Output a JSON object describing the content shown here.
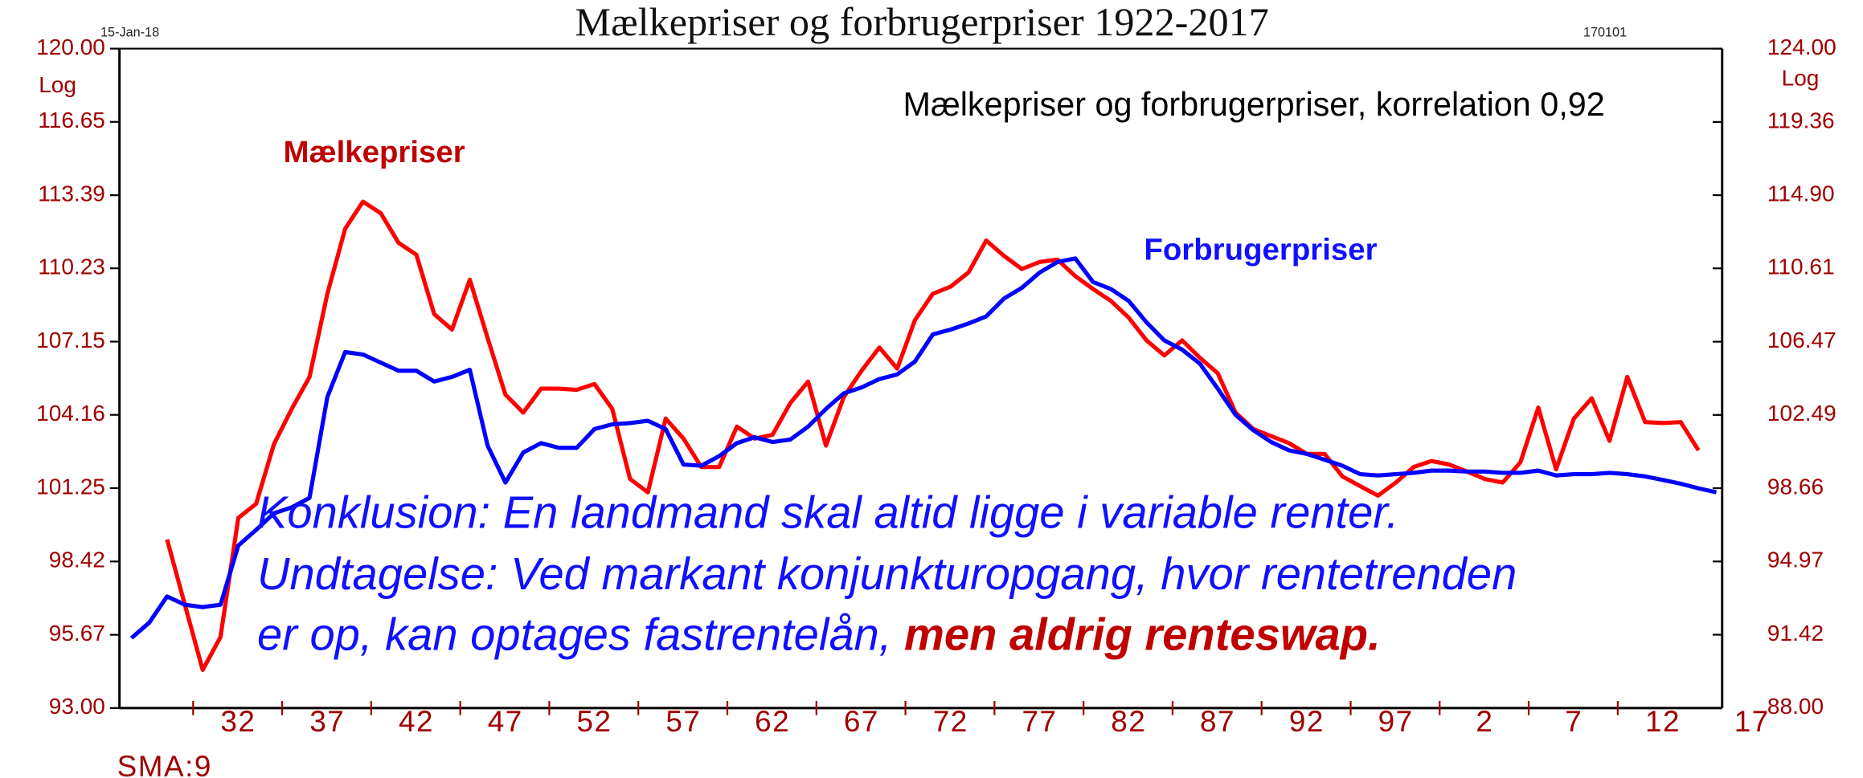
{
  "chart_data": {
    "type": "line",
    "title": "Mælkepriser og forbrugerpriser 1922-2017",
    "date_stamp": "15-Jan-18",
    "code_stamp": "170101",
    "y_scale_label": "Log",
    "y2_scale_label": "Log",
    "smoothing_label": "SMA:9",
    "log_scale": true,
    "annotations": {
      "correlation": "Mælkepriser og forbrugerpriser, korrelation 0,92",
      "milk_label": "Mælkepriser",
      "cpi_label": "Forbrugerpriser",
      "conclusion_line1": "Konklusion: En landmand skal altid ligge i variable renter.",
      "conclusion_line2": "Undtagelse: Ved markant konjunkturopgang, hvor rentetrenden",
      "conclusion_line3": "er op, kan optages fastrentelån, ",
      "conclusion_emphasis": "men aldrig renteswap."
    },
    "x": [
      1926,
      1927,
      1928,
      1929,
      1930,
      1931,
      1932,
      1933,
      1934,
      1935,
      1936,
      1937,
      1938,
      1939,
      1940,
      1941,
      1942,
      1943,
      1944,
      1945,
      1946,
      1947,
      1948,
      1949,
      1950,
      1951,
      1952,
      1953,
      1954,
      1955,
      1956,
      1957,
      1958,
      1959,
      1960,
      1961,
      1962,
      1963,
      1964,
      1965,
      1966,
      1967,
      1968,
      1969,
      1970,
      1971,
      1972,
      1973,
      1974,
      1975,
      1976,
      1977,
      1978,
      1979,
      1980,
      1981,
      1982,
      1983,
      1984,
      1985,
      1986,
      1987,
      1988,
      1989,
      1990,
      1991,
      1992,
      1993,
      1994,
      1995,
      1996,
      1997,
      1998,
      1999,
      2000,
      2001,
      2002,
      2003,
      2004,
      2005,
      2006,
      2007,
      2008,
      2009,
      2010,
      2011,
      2012,
      2013,
      2014,
      2015
    ],
    "xlim": [
      1925.33,
      2015.33
    ],
    "xticks": [
      {
        "value": 1932,
        "label": "32"
      },
      {
        "value": 1937,
        "label": "37"
      },
      {
        "value": 1942,
        "label": "42"
      },
      {
        "value": 1947,
        "label": "47"
      },
      {
        "value": 1952,
        "label": "52"
      },
      {
        "value": 1957,
        "label": "57"
      },
      {
        "value": 1962,
        "label": "62"
      },
      {
        "value": 1967,
        "label": "67"
      },
      {
        "value": 1972,
        "label": "72"
      },
      {
        "value": 1977,
        "label": "77"
      },
      {
        "value": 1982,
        "label": "82"
      },
      {
        "value": 1987,
        "label": "87"
      },
      {
        "value": 1992,
        "label": "92"
      },
      {
        "value": 1997,
        "label": "97"
      },
      {
        "value": 2002,
        "label": "2"
      },
      {
        "value": 2007,
        "label": "7"
      },
      {
        "value": 2012,
        "label": "12"
      },
      {
        "value": 2017,
        "label": "17"
      }
    ],
    "ylim": [
      93,
      120
    ],
    "yticks": [
      {
        "value": 93,
        "label": "93.00"
      },
      {
        "value": 95.67,
        "label": "95.67"
      },
      {
        "value": 98.42,
        "label": "98.42"
      },
      {
        "value": 101.25,
        "label": "101.25"
      },
      {
        "value": 104.16,
        "label": "104.16"
      },
      {
        "value": 107.15,
        "label": "107.15"
      },
      {
        "value": 110.23,
        "label": "110.23"
      },
      {
        "value": 113.39,
        "label": "113.39"
      },
      {
        "value": 116.65,
        "label": "116.65"
      },
      {
        "value": 120,
        "label": "120.00"
      }
    ],
    "y2lim": [
      88,
      124
    ],
    "y2ticks": [
      {
        "value": 88,
        "label": "88.00"
      },
      {
        "value": 91.42,
        "label": "91.42"
      },
      {
        "value": 94.97,
        "label": "94.97"
      },
      {
        "value": 98.66,
        "label": "98.66"
      },
      {
        "value": 102.49,
        "label": "102.49"
      },
      {
        "value": 106.47,
        "label": "106.47"
      },
      {
        "value": 110.61,
        "label": "110.61"
      },
      {
        "value": 114.9,
        "label": "114.90"
      },
      {
        "value": 119.36,
        "label": "119.36"
      },
      {
        "value": 124,
        "label": "124.00"
      }
    ],
    "series": [
      {
        "color": "#ff0000",
        "values": [
          null,
          null,
          99.26,
          96.79,
          94.38,
          95.59,
          100.09,
          100.64,
          102.98,
          104.4,
          105.7,
          109.15,
          111.93,
          113.11,
          112.6,
          111.32,
          110.81,
          108.3,
          107.65,
          109.75,
          107.3,
          104.98,
          104.25,
          105.22,
          105.22,
          105.17,
          105.41,
          104.4,
          101.61,
          101.09,
          104.01,
          103.21,
          102.08,
          102.08,
          103.69,
          103.21,
          103.36,
          104.64,
          105.51,
          102.93,
          104.88,
          105.95,
          106.91,
          106.04,
          108.05,
          109.15,
          109.45,
          110.05,
          111.42,
          110.76,
          110.2,
          110.5,
          110.6,
          109.9,
          109.35,
          108.85,
          108.15,
          107.2,
          106.58,
          107.2,
          106.48,
          105.85,
          104.25,
          103.59,
          103.31,
          103.03,
          102.6,
          102.6,
          101.71,
          101.33,
          100.96,
          101.47,
          102.08,
          102.32,
          102.18,
          101.9,
          101.61,
          101.47,
          102.27,
          104.45,
          101.99,
          104.01,
          104.83,
          103.12,
          105.7,
          103.87,
          103.83,
          103.87,
          102.74,
          null
        ]
      },
      {
        "color": "#0000ff",
        "values": [
          95.55,
          96.12,
          97.1,
          96.79,
          96.7,
          96.79,
          99.03,
          99.63,
          100.27,
          100.5,
          100.87,
          104.88,
          106.72,
          106.62,
          106.28,
          105.95,
          105.95,
          105.51,
          105.7,
          105.99,
          102.93,
          101.47,
          102.65,
          103.03,
          102.84,
          102.84,
          103.59,
          103.78,
          103.83,
          103.92,
          103.59,
          102.18,
          102.13,
          102.51,
          103.03,
          103.26,
          103.07,
          103.17,
          103.69,
          104.4,
          105.03,
          105.27,
          105.61,
          105.8,
          106.33,
          107.45,
          107.65,
          107.9,
          108.2,
          108.95,
          109.4,
          110.05,
          110.5,
          110.65,
          109.65,
          109.35,
          108.85,
          107.95,
          107.2,
          106.82,
          106.24,
          105.22,
          104.16,
          103.54,
          103.07,
          102.74,
          102.6,
          102.37,
          102.13,
          101.8,
          101.75,
          101.8,
          101.85,
          101.94,
          101.94,
          101.9,
          101.9,
          101.85,
          101.85,
          101.94,
          101.75,
          101.8,
          101.8,
          101.85,
          101.8,
          101.71,
          101.57,
          101.42,
          101.24,
          101.09
        ]
      }
    ]
  }
}
